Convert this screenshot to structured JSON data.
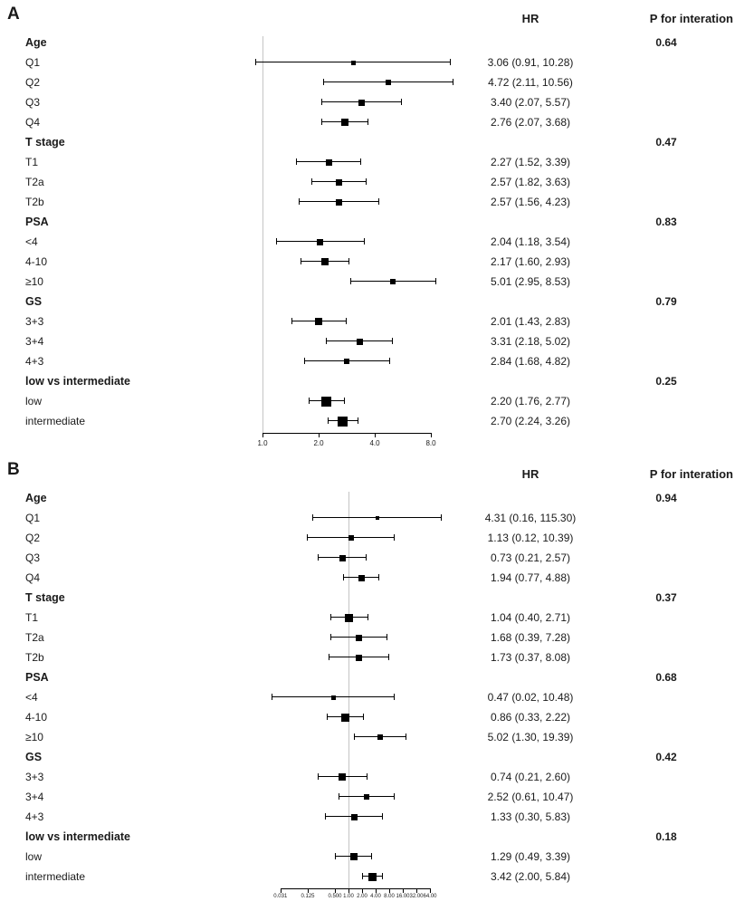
{
  "chart_data": [
    {
      "type": "forest",
      "panel_label": "A",
      "columns": {
        "hr_header": "HR",
        "p_header": "P for interation"
      },
      "axis_ticks": [
        1.0,
        2.0,
        4.0,
        8.0
      ],
      "axis_tick_labels": [
        "1.0",
        "2.0",
        "4.0",
        "8.0"
      ],
      "reference_value": 1.0,
      "rows": [
        {
          "label": "Age",
          "group": true,
          "p": "0.64"
        },
        {
          "label": "Q1",
          "hr": 3.06,
          "lo": 0.91,
          "hi": 10.28,
          "text": "3.06 (0.91, 10.28)",
          "size": 5
        },
        {
          "label": "Q2",
          "hr": 4.72,
          "lo": 2.11,
          "hi": 10.56,
          "text": "4.72 (2.11, 10.56)",
          "size": 6
        },
        {
          "label": "Q3",
          "hr": 3.4,
          "lo": 2.07,
          "hi": 5.57,
          "text": "3.40 (2.07, 5.57)",
          "size": 7
        },
        {
          "label": "Q4",
          "hr": 2.76,
          "lo": 2.07,
          "hi": 3.68,
          "text": "2.76 (2.07, 3.68)",
          "size": 8
        },
        {
          "label": "T stage",
          "group": true,
          "p": "0.47"
        },
        {
          "label": "T1",
          "hr": 2.27,
          "lo": 1.52,
          "hi": 3.39,
          "text": "2.27 (1.52, 3.39)",
          "size": 7
        },
        {
          "label": "T2a",
          "hr": 2.57,
          "lo": 1.82,
          "hi": 3.63,
          "text": "2.57 (1.82, 3.63)",
          "size": 7
        },
        {
          "label": "T2b",
          "hr": 2.57,
          "lo": 1.56,
          "hi": 4.23,
          "text": "2.57 (1.56, 4.23)",
          "size": 7
        },
        {
          "label": "PSA",
          "group": true,
          "p": "0.83"
        },
        {
          "label": "<4",
          "hr": 2.04,
          "lo": 1.18,
          "hi": 3.54,
          "text": "2.04 (1.18, 3.54)",
          "size": 7
        },
        {
          "label": "4-10",
          "hr": 2.17,
          "lo": 1.6,
          "hi": 2.93,
          "text": "2.17 (1.60, 2.93)",
          "size": 8
        },
        {
          "label": "≥10",
          "hr": 5.01,
          "lo": 2.95,
          "hi": 8.53,
          "text": "5.01 (2.95, 8.53)",
          "size": 6
        },
        {
          "label": "GS",
          "group": true,
          "p": "0.79"
        },
        {
          "label": "3+3",
          "hr": 2.01,
          "lo": 1.43,
          "hi": 2.83,
          "text": "2.01 (1.43, 2.83)",
          "size": 8
        },
        {
          "label": "3+4",
          "hr": 3.31,
          "lo": 2.18,
          "hi": 5.02,
          "text": "3.31 (2.18, 5.02)",
          "size": 7
        },
        {
          "label": "4+3",
          "hr": 2.84,
          "lo": 1.68,
          "hi": 4.82,
          "text": "2.84 (1.68, 4.82)",
          "size": 6
        },
        {
          "label": "low vs intermediate",
          "group": true,
          "p": "0.25"
        },
        {
          "label": "low",
          "hr": 2.2,
          "lo": 1.76,
          "hi": 2.77,
          "text": "2.20 (1.76, 2.77)",
          "size": 11
        },
        {
          "label": "intermediate",
          "hr": 2.7,
          "lo": 2.24,
          "hi": 3.26,
          "text": "2.70 (2.24, 3.26)",
          "size": 11
        }
      ]
    },
    {
      "type": "forest",
      "panel_label": "B",
      "columns": {
        "hr_header": "HR",
        "p_header": "P for interation"
      },
      "axis_ticks": [
        0.031,
        0.125,
        0.5,
        1.0,
        2.0,
        4.0,
        8.0,
        16.0,
        32.0,
        64.0
      ],
      "axis_tick_labels": [
        "0.031",
        "0.125",
        "0.500",
        "1.00",
        "2.00",
        "4.00",
        "8.00",
        "16.00",
        "32.00",
        "64.00"
      ],
      "reference_value": 1.0,
      "rows": [
        {
          "label": "Age",
          "group": true,
          "p": "0.94"
        },
        {
          "label": "Q1",
          "hr": 4.31,
          "lo": 0.16,
          "hi": 115.3,
          "text": "4.31 (0.16, 115.30)",
          "size": 4
        },
        {
          "label": "Q2",
          "hr": 1.13,
          "lo": 0.12,
          "hi": 10.39,
          "text": "1.13 (0.12, 10.39)",
          "size": 6
        },
        {
          "label": "Q3",
          "hr": 0.73,
          "lo": 0.21,
          "hi": 2.57,
          "text": "0.73 (0.21, 2.57)",
          "size": 7
        },
        {
          "label": "Q4",
          "hr": 1.94,
          "lo": 0.77,
          "hi": 4.88,
          "text": "1.94 (0.77, 4.88)",
          "size": 7
        },
        {
          "label": "T stage",
          "group": true,
          "p": "0.37"
        },
        {
          "label": "T1",
          "hr": 1.04,
          "lo": 0.4,
          "hi": 2.71,
          "text": "1.04 (0.40, 2.71)",
          "size": 9
        },
        {
          "label": "T2a",
          "hr": 1.68,
          "lo": 0.39,
          "hi": 7.28,
          "text": "1.68 (0.39, 7.28)",
          "size": 7
        },
        {
          "label": "T2b",
          "hr": 1.73,
          "lo": 0.37,
          "hi": 8.08,
          "text": "1.73 (0.37, 8.08)",
          "size": 7
        },
        {
          "label": "PSA",
          "group": true,
          "p": "0.68"
        },
        {
          "label": "<4",
          "hr": 0.47,
          "lo": 0.02,
          "hi": 10.48,
          "text": "0.47 (0.02, 10.48)",
          "size": 5
        },
        {
          "label": "4-10",
          "hr": 0.86,
          "lo": 0.33,
          "hi": 2.22,
          "text": "0.86 (0.33, 2.22)",
          "size": 9
        },
        {
          "label": "≥10",
          "hr": 5.02,
          "lo": 1.3,
          "hi": 19.39,
          "text": "5.02 (1.30, 19.39)",
          "size": 6
        },
        {
          "label": "GS",
          "group": true,
          "p": "0.42"
        },
        {
          "label": "3+3",
          "hr": 0.74,
          "lo": 0.21,
          "hi": 2.6,
          "text": "0.74 (0.21, 2.60)",
          "size": 8
        },
        {
          "label": "3+4",
          "hr": 2.52,
          "lo": 0.61,
          "hi": 10.47,
          "text": "2.52 (0.61, 10.47)",
          "size": 6
        },
        {
          "label": "4+3",
          "hr": 1.33,
          "lo": 0.3,
          "hi": 5.83,
          "text": "1.33 (0.30, 5.83)",
          "size": 7
        },
        {
          "label": "low vs intermediate",
          "group": true,
          "p": "0.18"
        },
        {
          "label": "low",
          "hr": 1.29,
          "lo": 0.49,
          "hi": 3.39,
          "text": "1.29 (0.49, 3.39)",
          "size": 8
        },
        {
          "label": "intermediate",
          "hr": 3.42,
          "lo": 2.0,
          "hi": 5.84,
          "text": "3.42 (2.00, 5.84)",
          "size": 9
        }
      ]
    }
  ]
}
